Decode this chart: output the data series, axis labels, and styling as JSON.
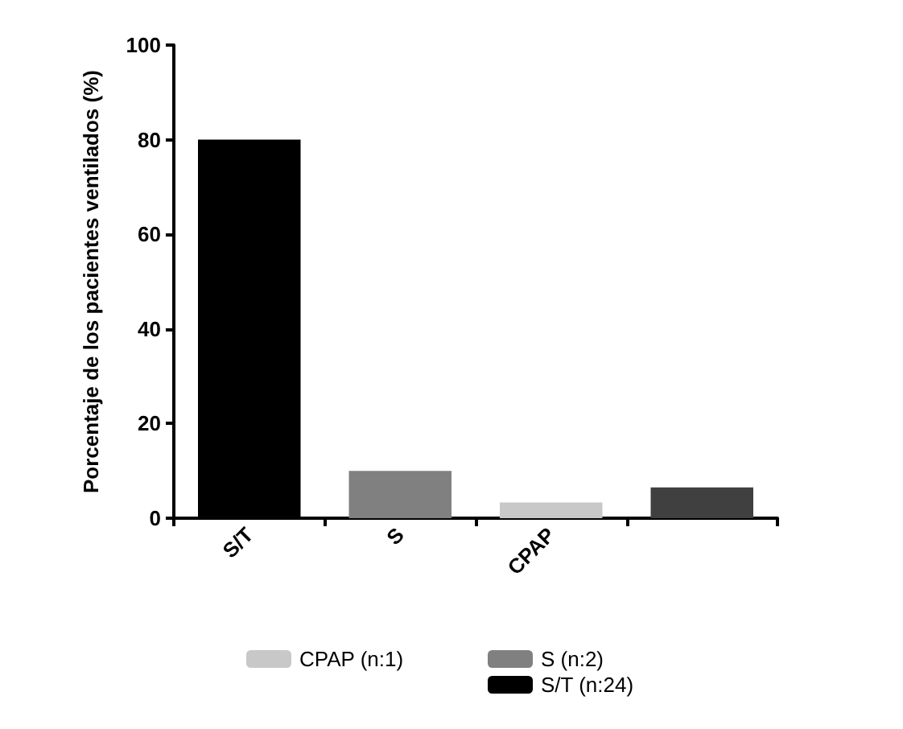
{
  "chart_data": {
    "type": "bar",
    "ylabel": "Porcentaje de los pacientes ventilados (%)",
    "categories": [
      "S/T",
      "S",
      "CPAP",
      null
    ],
    "series": [
      {
        "name": "S/T (n:24)",
        "color": "#000000",
        "values": [
          80,
          null,
          null,
          null
        ]
      },
      {
        "name": "S (n:2)",
        "color": "#808080",
        "values": [
          null,
          10,
          null,
          null
        ]
      },
      {
        "name": "CPAP (n:1)",
        "color": "#c8c8c8",
        "values": [
          null,
          null,
          3.3,
          null
        ]
      },
      {
        "color": "#404040",
        "values": [
          null,
          null,
          null,
          6.5
        ]
      }
    ],
    "ylim": [
      0,
      100
    ],
    "yticks": [
      0,
      20,
      40,
      60,
      80,
      100
    ],
    "grid": false,
    "legend": "bottom"
  }
}
